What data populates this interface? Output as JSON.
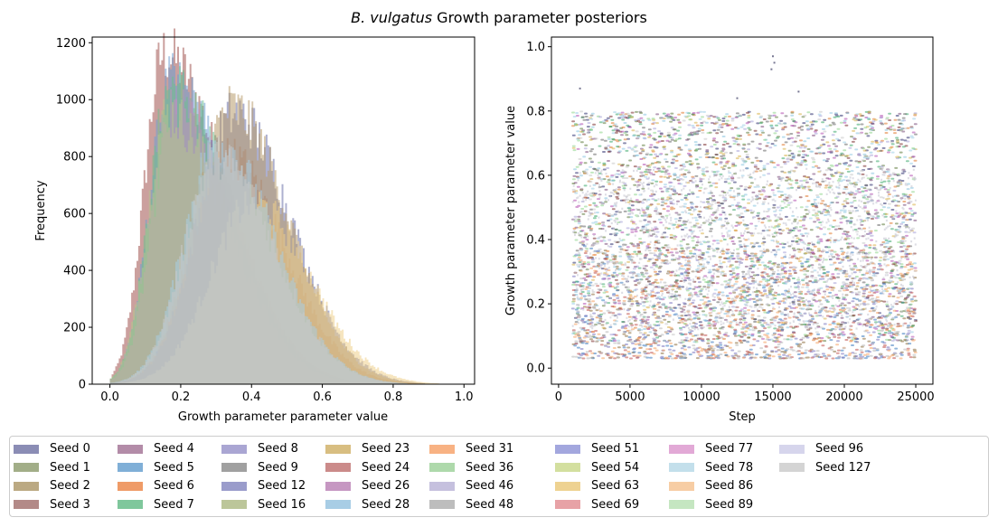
{
  "figure": {
    "title_italic": "B. vulgatus",
    "title_rest": " Growth parameter posteriors"
  },
  "chart_data": [
    {
      "type": "histogram",
      "xlabel": "Growth parameter parameter value",
      "ylabel": "Frequency",
      "xlim": [
        -0.05,
        1.03
      ],
      "ylim": [
        0,
        1220
      ],
      "xticks": [
        0.0,
        0.2,
        0.4,
        0.6,
        0.8,
        1.0
      ],
      "xtick_labels": [
        "0.0",
        "0.2",
        "0.4",
        "0.6",
        "0.8",
        "1.0"
      ],
      "yticks": [
        0,
        200,
        400,
        600,
        800,
        1000,
        1200
      ],
      "ytick_labels": [
        "0",
        "200",
        "400",
        "600",
        "800",
        "1000",
        "1200"
      ],
      "series": [
        {
          "name": "Seed 3",
          "color": "#a0524e",
          "peak_x": 0.15,
          "peak_y": 1160
        },
        {
          "name": "Seed 5",
          "color": "#6f9fd2",
          "peak_x": 0.17,
          "peak_y": 1060
        },
        {
          "name": "Seed 7",
          "color": "#6dbf8c",
          "peak_x": 0.17,
          "peak_y": 1050
        },
        {
          "name": "Seed 26",
          "color": "#c48ebf",
          "peak_x": 0.18,
          "peak_y": 960
        },
        {
          "name": "Seed 16",
          "color": "#b7c58e",
          "peak_x": 0.16,
          "peak_y": 950
        },
        {
          "name": "Seed 6",
          "color": "#ee8443",
          "peak_x": 0.33,
          "peak_y": 800
        },
        {
          "name": "Seed 0",
          "color": "#6a6fa8",
          "peak_x": 0.35,
          "peak_y": 950
        },
        {
          "name": "Seed 2",
          "color": "#b89d6d",
          "peak_x": 0.34,
          "peak_y": 970
        },
        {
          "name": "Seed 63",
          "color": "#efcf8a",
          "peak_x": 0.4,
          "peak_y": 640
        },
        {
          "name": "Seed 28",
          "color": "#a7cde3",
          "peak_x": 0.3,
          "peak_y": 850
        },
        {
          "name": "Seed 127",
          "color": "#c9c9c9",
          "peak_x": 0.3,
          "peak_y": 800
        }
      ]
    },
    {
      "type": "scatter",
      "xlabel": "Step",
      "ylabel": "Growth parameter parameter value",
      "xlim": [
        -500,
        26200
      ],
      "ylim": [
        -0.05,
        1.03
      ],
      "xticks": [
        0,
        5000,
        10000,
        15000,
        20000,
        25000
      ],
      "xtick_labels": [
        "0",
        "5000",
        "10000",
        "15000",
        "20000",
        "25000"
      ],
      "yticks": [
        0.0,
        0.2,
        0.4,
        0.6,
        0.8,
        1.0
      ],
      "ytick_labels": [
        "0.0",
        "0.2",
        "0.4",
        "0.6",
        "0.8",
        "1.0"
      ],
      "x_range": [
        1000,
        25000
      ]
    }
  ],
  "legend": [
    {
      "label": "Seed 0",
      "color": "#8b8db5"
    },
    {
      "label": "Seed 1",
      "color": "#a2ae88"
    },
    {
      "label": "Seed 2",
      "color": "#bba982"
    },
    {
      "label": "Seed 3",
      "color": "#b38a88"
    },
    {
      "label": "Seed 4",
      "color": "#b38ca8"
    },
    {
      "label": "Seed 5",
      "color": "#80afd7"
    },
    {
      "label": "Seed 6",
      "color": "#ef9b67"
    },
    {
      "label": "Seed 7",
      "color": "#7fc79c"
    },
    {
      "label": "Seed 8",
      "color": "#aaa6d3"
    },
    {
      "label": "Seed 9",
      "color": "#a0a0a0"
    },
    {
      "label": "Seed 12",
      "color": "#9a9ccb"
    },
    {
      "label": "Seed 16",
      "color": "#bcc69a"
    },
    {
      "label": "Seed 23",
      "color": "#d8be81"
    },
    {
      "label": "Seed 24",
      "color": "#cb8b8a"
    },
    {
      "label": "Seed 26",
      "color": "#c697c2"
    },
    {
      "label": "Seed 28",
      "color": "#a8cde5"
    },
    {
      "label": "Seed 31",
      "color": "#f8b283"
    },
    {
      "label": "Seed 36",
      "color": "#aed9ab"
    },
    {
      "label": "Seed 46",
      "color": "#c5c0de"
    },
    {
      "label": "Seed 48",
      "color": "#bdbdbd"
    },
    {
      "label": "Seed 51",
      "color": "#a3a7de"
    },
    {
      "label": "Seed 54",
      "color": "#d3df9f"
    },
    {
      "label": "Seed 63",
      "color": "#eed291"
    },
    {
      "label": "Seed 69",
      "color": "#e7a2a6"
    },
    {
      "label": "Seed 77",
      "color": "#e2a9d6"
    },
    {
      "label": "Seed 78",
      "color": "#c3dfeb"
    },
    {
      "label": "Seed 86",
      "color": "#f7cda4"
    },
    {
      "label": "Seed 89",
      "color": "#c5e6c1"
    },
    {
      "label": "Seed 96",
      "color": "#d6d5ec"
    },
    {
      "label": "Seed 127",
      "color": "#d4d4d4"
    }
  ]
}
